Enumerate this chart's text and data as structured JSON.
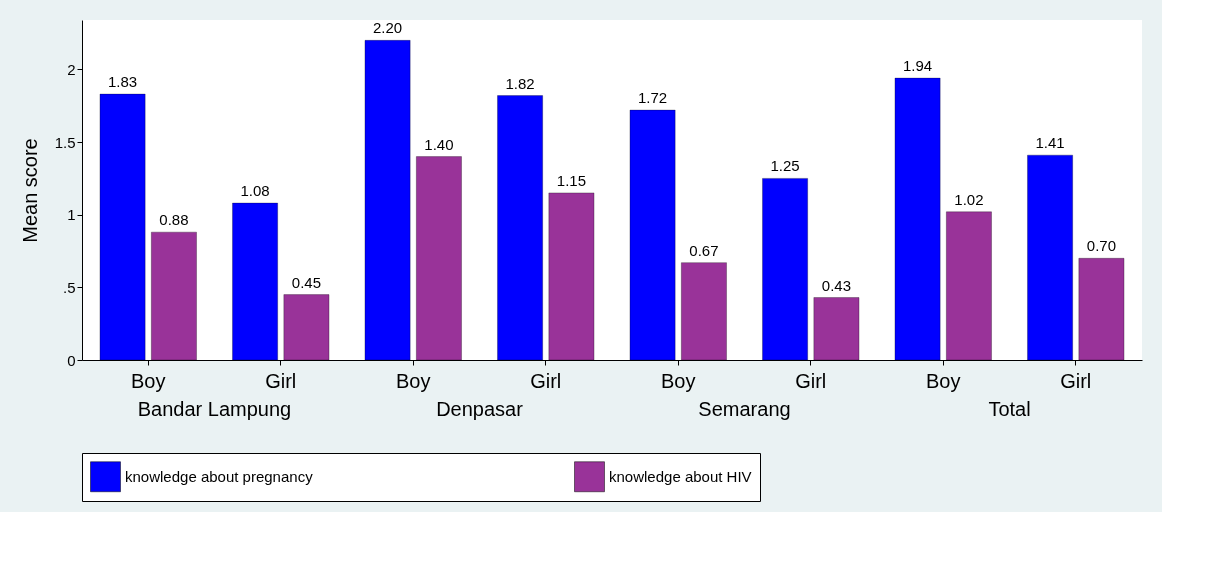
{
  "chart_data": {
    "type": "bar",
    "ylabel": "Mean score",
    "categories": [
      "Boy",
      "Girl",
      "Boy",
      "Girl",
      "Boy",
      "Girl",
      "Boy",
      "Girl"
    ],
    "annotations": [
      "Bandar Lampung",
      "Denpasar",
      "Semarang",
      "Total"
    ],
    "series": [
      {
        "name": "knowledge about pregnancy",
        "color": "#0000ff",
        "values": [
          1.83,
          1.08,
          2.2,
          1.82,
          1.72,
          1.25,
          1.94,
          1.41
        ],
        "value_labels": [
          "1.83",
          "1.08",
          "2.20",
          "1.82",
          "1.72",
          "1.25",
          "1.94",
          "1.41"
        ]
      },
      {
        "name": "knowledge about HIV",
        "color": "#993399",
        "values": [
          0.88,
          0.45,
          1.4,
          1.15,
          0.67,
          0.43,
          1.02,
          0.7
        ],
        "value_labels": [
          "0.88",
          "0.45",
          "1.40",
          "1.15",
          "0.67",
          "0.43",
          "1.02",
          "0.70"
        ]
      }
    ],
    "ylim": [
      0,
      2.34
    ],
    "yticks": [
      0,
      {
        "value": 0.5,
        "label": ".5"
      },
      1,
      1.5,
      2
    ],
    "grid": false,
    "legend": "bottom"
  }
}
